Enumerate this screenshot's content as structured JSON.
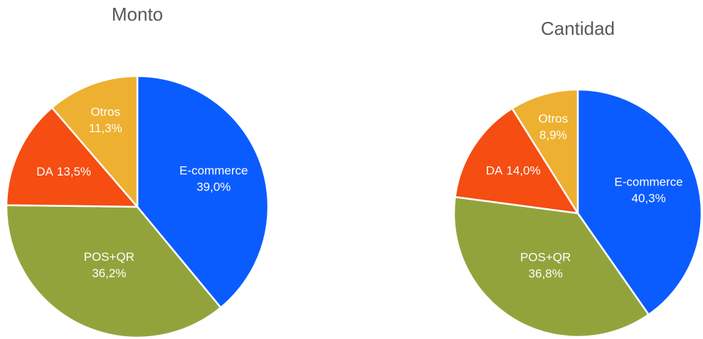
{
  "chart_data": [
    {
      "type": "pie",
      "title": "Monto",
      "categories": [
        "E-commerce",
        "POS+QR",
        "DA",
        "Otros"
      ],
      "values": [
        39.0,
        36.2,
        13.5,
        11.3
      ],
      "value_labels": [
        "39,0%",
        "36,2%",
        "13,5%",
        "11,3%"
      ],
      "colors": [
        "#0a5cff",
        "#93a33c",
        "#f54d12",
        "#eeb030"
      ]
    },
    {
      "type": "pie",
      "title": "Cantidad",
      "categories": [
        "E-commerce",
        "POS+QR",
        "DA",
        "Otros"
      ],
      "values": [
        40.3,
        36.8,
        14.0,
        8.9
      ],
      "value_labels": [
        "40,3%",
        "36,8%",
        "14,0%",
        "8,9%"
      ],
      "colors": [
        "#0a5cff",
        "#93a33c",
        "#f54d12",
        "#eeb030"
      ]
    }
  ]
}
